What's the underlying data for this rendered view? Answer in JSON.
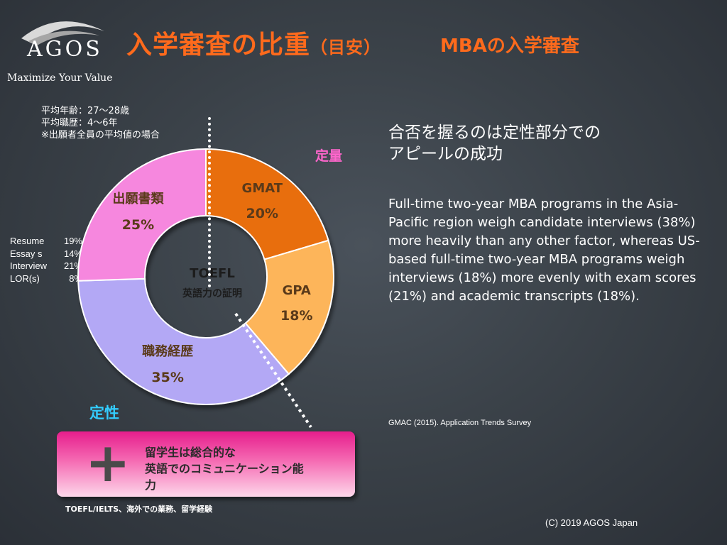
{
  "logo": {
    "text": "AGOS",
    "tagline": "Maximize Your Value"
  },
  "header": {
    "title": "入学審査の比重",
    "title_suffix": "（目安）",
    "subtitle": "MBAの入学審査"
  },
  "stats": {
    "lines": [
      "平均年齢：27～28歳",
      "平均職歴：4～6年",
      "※出願者全員の平均値の場合"
    ]
  },
  "application_docs": [
    {
      "label": "Resume",
      "value": "19%"
    },
    {
      "label": "Essay s",
      "value": "14%"
    },
    {
      "label": "Interview",
      "value": "21%"
    },
    {
      "label": "LOR(s)",
      "value": "8%"
    }
  ],
  "labels": {
    "quantitative": "定量",
    "qualitative": "定性"
  },
  "chart_data": {
    "type": "pie",
    "donut": true,
    "center_title": "TOEFL",
    "center_subtitle": "英語力の証明",
    "slices": [
      {
        "label": "GMAT",
        "value": 20,
        "display": "20%",
        "color": "#e86e10"
      },
      {
        "label": "GPA",
        "value": 18,
        "display": "18%",
        "color": "#fdb55a"
      },
      {
        "label": "職務経歴",
        "value": 35,
        "display": "35%",
        "color": "#b3a8f5"
      },
      {
        "label": "出願書類",
        "value": 25,
        "display": "25%",
        "color": "#f687de"
      }
    ]
  },
  "right_panel": {
    "headline_lines": [
      "合否を握るのは定性部分での",
      "アピールの成功"
    ],
    "body": "Full-time two-year MBA programs in the Asia-Pacific region weigh candidate interviews (38%) more heavily than any other factor, whereas US-based full-time two-year MBA programs weigh interviews (18%) more evenly with exam scores (21%) and academic transcripts (18%).",
    "source": "GMAC (2015). Application Trends Survey"
  },
  "callout": {
    "plus": "+",
    "lines": [
      "留学生は総合的な",
      "英語でのコミュニケーション能",
      "力"
    ],
    "note": "TOEFL/IELTS、海外での業務、留学経験"
  },
  "footer": {
    "copyright": "(C) 2019 AGOS Japan"
  }
}
